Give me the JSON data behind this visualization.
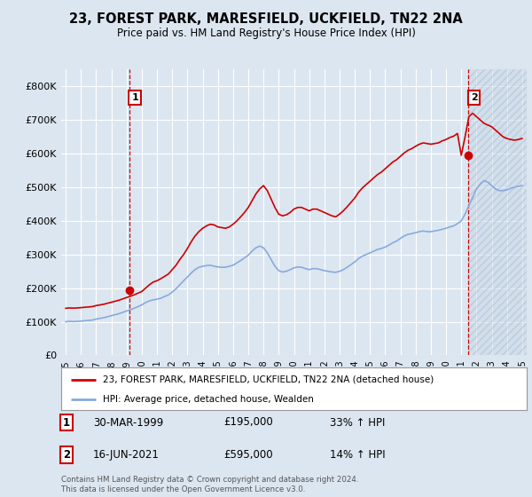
{
  "title": "23, FOREST PARK, MARESFIELD, UCKFIELD, TN22 2NA",
  "subtitle": "Price paid vs. HM Land Registry's House Price Index (HPI)",
  "legend_line1": "23, FOREST PARK, MARESFIELD, UCKFIELD, TN22 2NA (detached house)",
  "legend_line2": "HPI: Average price, detached house, Wealden",
  "annotation1_date": "30-MAR-1999",
  "annotation1_price": "£195,000",
  "annotation1_hpi": "33% ↑ HPI",
  "annotation2_date": "16-JUN-2021",
  "annotation2_price": "£595,000",
  "annotation2_hpi": "14% ↑ HPI",
  "footnote": "Contains HM Land Registry data © Crown copyright and database right 2024.\nThis data is licensed under the Open Government Licence v3.0.",
  "red_color": "#cc0000",
  "blue_color": "#88aadd",
  "background_color": "#dce6f0",
  "plot_bg_color": "#dce6f0",
  "ylim": [
    0,
    850000
  ],
  "yticks": [
    0,
    100000,
    200000,
    300000,
    400000,
    500000,
    600000,
    700000,
    800000
  ],
  "ytick_labels": [
    "£0",
    "£100K",
    "£200K",
    "£300K",
    "£400K",
    "£500K",
    "£600K",
    "£700K",
    "£800K"
  ],
  "xtick_years": [
    1995,
    1996,
    1997,
    1998,
    1999,
    2000,
    2001,
    2002,
    2003,
    2004,
    2005,
    2006,
    2007,
    2008,
    2009,
    2010,
    2011,
    2012,
    2013,
    2014,
    2015,
    2016,
    2017,
    2018,
    2019,
    2020,
    2021,
    2022,
    2023,
    2024,
    2025
  ],
  "hpi_x": [
    1995.0,
    1995.25,
    1995.5,
    1995.75,
    1996.0,
    1996.25,
    1996.5,
    1996.75,
    1997.0,
    1997.25,
    1997.5,
    1997.75,
    1998.0,
    1998.25,
    1998.5,
    1998.75,
    1999.0,
    1999.25,
    1999.5,
    1999.75,
    2000.0,
    2000.25,
    2000.5,
    2000.75,
    2001.0,
    2001.25,
    2001.5,
    2001.75,
    2002.0,
    2002.25,
    2002.5,
    2002.75,
    2003.0,
    2003.25,
    2003.5,
    2003.75,
    2004.0,
    2004.25,
    2004.5,
    2004.75,
    2005.0,
    2005.25,
    2005.5,
    2005.75,
    2006.0,
    2006.25,
    2006.5,
    2006.75,
    2007.0,
    2007.25,
    2007.5,
    2007.75,
    2008.0,
    2008.25,
    2008.5,
    2008.75,
    2009.0,
    2009.25,
    2009.5,
    2009.75,
    2010.0,
    2010.25,
    2010.5,
    2010.75,
    2011.0,
    2011.25,
    2011.5,
    2011.75,
    2012.0,
    2012.25,
    2012.5,
    2012.75,
    2013.0,
    2013.25,
    2013.5,
    2013.75,
    2014.0,
    2014.25,
    2014.5,
    2014.75,
    2015.0,
    2015.25,
    2015.5,
    2015.75,
    2016.0,
    2016.25,
    2016.5,
    2016.75,
    2017.0,
    2017.25,
    2017.5,
    2017.75,
    2018.0,
    2018.25,
    2018.5,
    2018.75,
    2019.0,
    2019.25,
    2019.5,
    2019.75,
    2020.0,
    2020.25,
    2020.5,
    2020.75,
    2021.0,
    2021.25,
    2021.5,
    2021.75,
    2022.0,
    2022.25,
    2022.5,
    2022.75,
    2023.0,
    2023.25,
    2023.5,
    2023.75,
    2024.0,
    2024.25,
    2024.5,
    2024.75,
    2025.0
  ],
  "hpi_y": [
    100000,
    101000,
    100500,
    101000,
    102000,
    103000,
    104000,
    105000,
    108000,
    110000,
    112000,
    115000,
    118000,
    121000,
    124000,
    128000,
    132000,
    136000,
    140000,
    145000,
    150000,
    157000,
    162000,
    165000,
    167000,
    170000,
    175000,
    180000,
    188000,
    198000,
    210000,
    222000,
    233000,
    245000,
    255000,
    262000,
    265000,
    267000,
    268000,
    265000,
    263000,
    262000,
    262000,
    265000,
    268000,
    275000,
    282000,
    290000,
    298000,
    310000,
    320000,
    325000,
    320000,
    305000,
    285000,
    265000,
    252000,
    248000,
    250000,
    255000,
    260000,
    263000,
    262000,
    258000,
    255000,
    258000,
    258000,
    255000,
    252000,
    250000,
    248000,
    247000,
    250000,
    255000,
    262000,
    270000,
    278000,
    288000,
    295000,
    300000,
    305000,
    310000,
    315000,
    318000,
    322000,
    328000,
    335000,
    340000,
    348000,
    355000,
    360000,
    362000,
    365000,
    368000,
    370000,
    368000,
    368000,
    370000,
    372000,
    375000,
    378000,
    382000,
    385000,
    392000,
    400000,
    420000,
    445000,
    470000,
    495000,
    510000,
    520000,
    515000,
    505000,
    495000,
    490000,
    490000,
    492000,
    497000,
    500000,
    503000,
    505000
  ],
  "red_x": [
    1995.0,
    1995.25,
    1995.5,
    1995.75,
    1996.0,
    1996.25,
    1996.5,
    1996.75,
    1997.0,
    1997.25,
    1997.5,
    1997.75,
    1998.0,
    1998.25,
    1998.5,
    1998.75,
    1999.0,
    1999.25,
    1999.5,
    1999.75,
    2000.0,
    2000.25,
    2000.5,
    2000.75,
    2001.0,
    2001.25,
    2001.5,
    2001.75,
    2002.0,
    2002.25,
    2002.5,
    2002.75,
    2003.0,
    2003.25,
    2003.5,
    2003.75,
    2004.0,
    2004.25,
    2004.5,
    2004.75,
    2005.0,
    2005.25,
    2005.5,
    2005.75,
    2006.0,
    2006.25,
    2006.5,
    2006.75,
    2007.0,
    2007.25,
    2007.5,
    2007.75,
    2008.0,
    2008.25,
    2008.5,
    2008.75,
    2009.0,
    2009.25,
    2009.5,
    2009.75,
    2010.0,
    2010.25,
    2010.5,
    2010.75,
    2011.0,
    2011.25,
    2011.5,
    2011.75,
    2012.0,
    2012.25,
    2012.5,
    2012.75,
    2013.0,
    2013.25,
    2013.5,
    2013.75,
    2014.0,
    2014.25,
    2014.5,
    2014.75,
    2015.0,
    2015.25,
    2015.5,
    2015.75,
    2016.0,
    2016.25,
    2016.5,
    2016.75,
    2017.0,
    2017.25,
    2017.5,
    2017.75,
    2018.0,
    2018.25,
    2018.5,
    2018.75,
    2019.0,
    2019.25,
    2019.5,
    2019.75,
    2020.0,
    2020.25,
    2020.5,
    2020.75,
    2021.0,
    2021.25,
    2021.5,
    2021.75,
    2022.0,
    2022.25,
    2022.5,
    2022.75,
    2023.0,
    2023.25,
    2023.5,
    2023.75,
    2024.0,
    2024.25,
    2024.5,
    2024.75,
    2025.0
  ],
  "red_y": [
    140000,
    141000,
    140500,
    141000,
    142000,
    143000,
    144000,
    145000,
    148000,
    150000,
    152000,
    155000,
    158000,
    161000,
    164000,
    168000,
    172000,
    176000,
    180000,
    185000,
    190000,
    200000,
    210000,
    218000,
    222000,
    228000,
    235000,
    242000,
    255000,
    268000,
    285000,
    300000,
    318000,
    338000,
    355000,
    368000,
    378000,
    385000,
    390000,
    388000,
    382000,
    380000,
    378000,
    382000,
    390000,
    400000,
    412000,
    425000,
    440000,
    460000,
    480000,
    495000,
    505000,
    490000,
    465000,
    440000,
    420000,
    415000,
    418000,
    425000,
    435000,
    440000,
    440000,
    435000,
    430000,
    435000,
    435000,
    430000,
    425000,
    420000,
    415000,
    412000,
    420000,
    430000,
    442000,
    455000,
    468000,
    485000,
    498000,
    508000,
    518000,
    528000,
    538000,
    545000,
    555000,
    565000,
    575000,
    582000,
    592000,
    602000,
    610000,
    615000,
    622000,
    628000,
    632000,
    630000,
    628000,
    630000,
    632000,
    638000,
    642000,
    648000,
    652000,
    660000,
    595000,
    650000,
    710000,
    720000,
    710000,
    700000,
    690000,
    685000,
    680000,
    670000,
    660000,
    650000,
    645000,
    642000,
    640000,
    642000,
    645000
  ],
  "sale1_x": 1999.17,
  "sale1_y": 195000,
  "sale2_x": 2021.46,
  "sale2_y": 595000,
  "vline1_x": 1999.17,
  "vline2_x": 2021.46,
  "hatch_start": 2021.46
}
